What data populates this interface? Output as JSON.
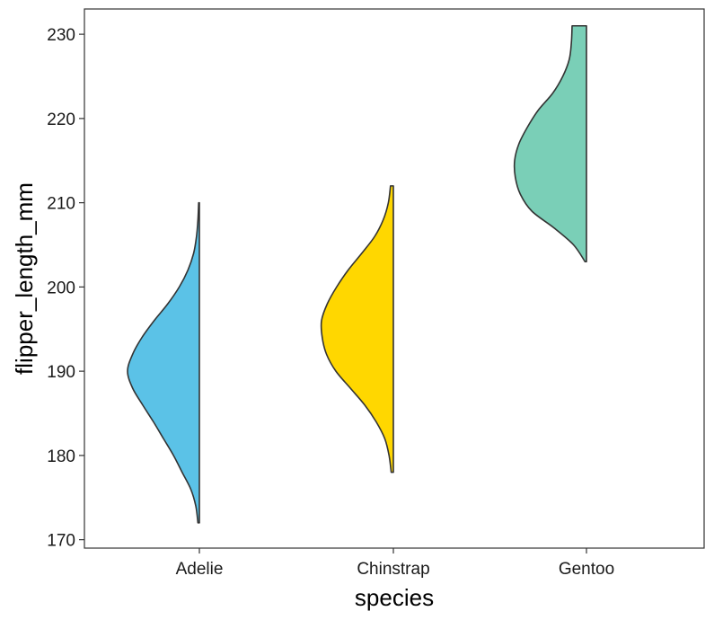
{
  "chart_data": {
    "type": "violin",
    "title": "",
    "xlabel": "species",
    "ylabel": "flipper_length_mm",
    "ylim": [
      169,
      233
    ],
    "yticks": [
      170,
      180,
      190,
      200,
      210,
      220,
      230
    ],
    "grid": false,
    "categories": [
      "Adelie",
      "Chinstrap",
      "Gentoo"
    ],
    "series": [
      {
        "category": "Adelie",
        "color": "#5BC2E7",
        "min": 172,
        "max": 210,
        "density": [
          [
            172,
            0.02
          ],
          [
            174,
            0.05
          ],
          [
            176,
            0.12
          ],
          [
            178,
            0.24
          ],
          [
            180,
            0.36
          ],
          [
            182,
            0.5
          ],
          [
            184,
            0.64
          ],
          [
            186,
            0.79
          ],
          [
            188,
            0.93
          ],
          [
            190,
            1.0
          ],
          [
            192,
            0.93
          ],
          [
            194,
            0.8
          ],
          [
            196,
            0.63
          ],
          [
            198,
            0.44
          ],
          [
            200,
            0.28
          ],
          [
            202,
            0.16
          ],
          [
            204,
            0.08
          ],
          [
            206,
            0.04
          ],
          [
            208,
            0.02
          ],
          [
            210,
            0.01
          ]
        ]
      },
      {
        "category": "Chinstrap",
        "color": "#FFD700",
        "min": 178,
        "max": 212,
        "density": [
          [
            178,
            0.03
          ],
          [
            180,
            0.06
          ],
          [
            182,
            0.12
          ],
          [
            184,
            0.24
          ],
          [
            186,
            0.4
          ],
          [
            188,
            0.6
          ],
          [
            190,
            0.8
          ],
          [
            192,
            0.93
          ],
          [
            194,
            0.99
          ],
          [
            196,
            1.0
          ],
          [
            198,
            0.92
          ],
          [
            200,
            0.79
          ],
          [
            202,
            0.63
          ],
          [
            204,
            0.44
          ],
          [
            206,
            0.26
          ],
          [
            208,
            0.14
          ],
          [
            210,
            0.07
          ],
          [
            212,
            0.04
          ]
        ]
      },
      {
        "category": "Gentoo",
        "color": "#7ACFB7",
        "min": 203,
        "max": 231,
        "density": [
          [
            203,
            0.02
          ],
          [
            205,
            0.18
          ],
          [
            207,
            0.45
          ],
          [
            209,
            0.76
          ],
          [
            211,
            0.92
          ],
          [
            213,
            0.99
          ],
          [
            215,
            1.0
          ],
          [
            217,
            0.94
          ],
          [
            219,
            0.82
          ],
          [
            221,
            0.67
          ],
          [
            223,
            0.47
          ],
          [
            225,
            0.33
          ],
          [
            227,
            0.24
          ],
          [
            229,
            0.21
          ],
          [
            231,
            0.2
          ]
        ]
      }
    ]
  }
}
